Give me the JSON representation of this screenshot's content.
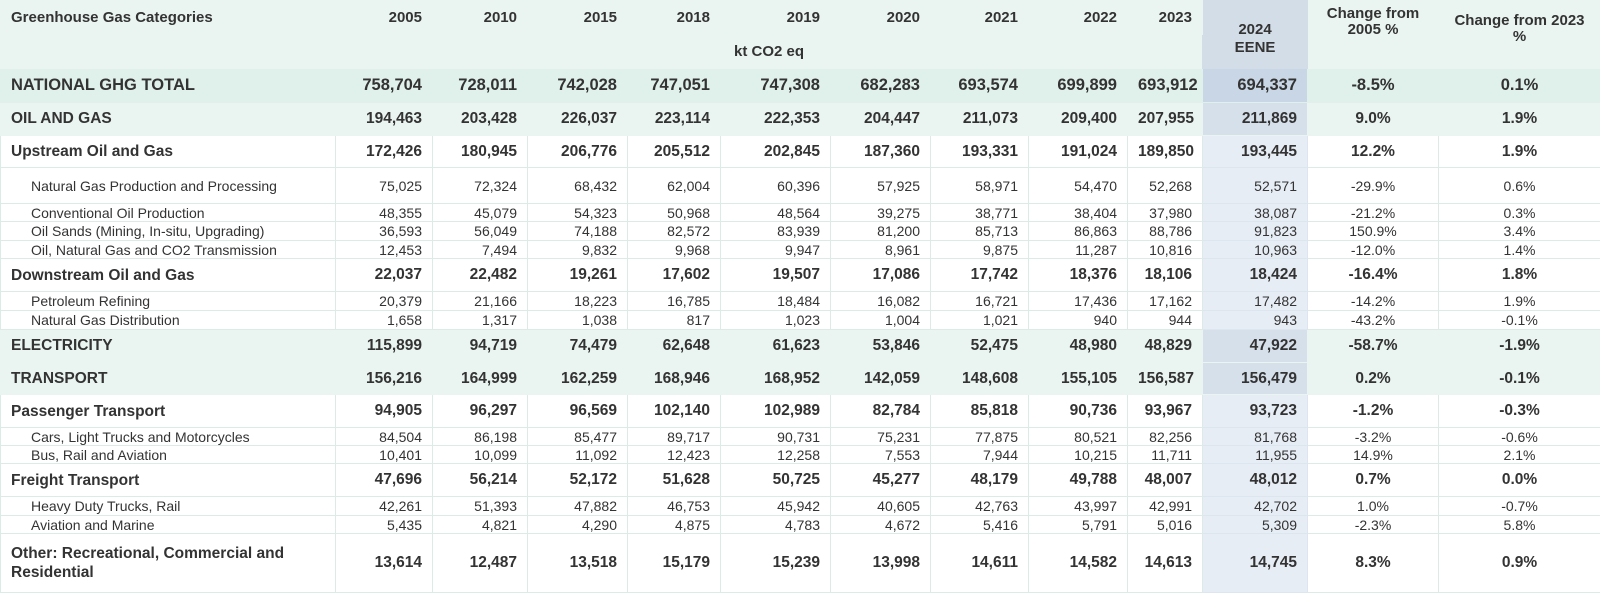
{
  "header": {
    "category_label": "Greenhouse Gas Categories",
    "years": [
      "2005",
      "2010",
      "2015",
      "2018",
      "2019",
      "2020",
      "2021",
      "2022",
      "2023"
    ],
    "unit": "kt CO2 eq",
    "eene_year": "2024",
    "eene_label": "EENE",
    "change_2005": "Change from 2005 %",
    "change_2023": "Change from 2023 %"
  },
  "colors": {
    "header_bg": "#eaf5f1",
    "total_bg": "#e0f0ea",
    "eene_col": "#e7edf5"
  },
  "rows": [
    {
      "type": "total",
      "label": "NATIONAL GHG TOTAL",
      "values": [
        "758,704",
        "728,011",
        "742,028",
        "747,051",
        "747,308",
        "682,283",
        "693,574",
        "699,899",
        "693,912"
      ],
      "eene": "694,337",
      "chg2005": "-8.5%",
      "chg2023": "0.1%"
    },
    {
      "type": "section",
      "label": "OIL AND GAS",
      "values": [
        "194,463",
        "203,428",
        "226,037",
        "223,114",
        "222,353",
        "204,447",
        "211,073",
        "209,400",
        "207,955"
      ],
      "eene": "211,869",
      "chg2005": "9.0%",
      "chg2023": "1.9%"
    },
    {
      "type": "sub",
      "label": "Upstream Oil and Gas",
      "values": [
        "172,426",
        "180,945",
        "206,776",
        "205,512",
        "202,845",
        "187,360",
        "193,331",
        "191,024",
        "189,850"
      ],
      "eene": "193,445",
      "chg2005": "12.2%",
      "chg2023": "1.9%"
    },
    {
      "type": "item",
      "label": "Natural Gas Production and Processing",
      "values": [
        "75,025",
        "72,324",
        "68,432",
        "62,004",
        "60,396",
        "57,925",
        "58,971",
        "54,470",
        "52,268"
      ],
      "eene": "52,571",
      "chg2005": "-29.9%",
      "chg2023": "0.6%"
    },
    {
      "type": "item",
      "label": "Conventional Oil Production",
      "values": [
        "48,355",
        "45,079",
        "54,323",
        "50,968",
        "48,564",
        "39,275",
        "38,771",
        "38,404",
        "37,980"
      ],
      "eene": "38,087",
      "chg2005": "-21.2%",
      "chg2023": "0.3%"
    },
    {
      "type": "item",
      "label": "Oil Sands (Mining, In-situ, Upgrading)",
      "values": [
        "36,593",
        "56,049",
        "74,188",
        "82,572",
        "83,939",
        "81,200",
        "85,713",
        "86,863",
        "88,786"
      ],
      "eene": "91,823",
      "chg2005": "150.9%",
      "chg2023": "3.4%"
    },
    {
      "type": "item",
      "label": "Oil, Natural Gas and CO2 Transmission",
      "values": [
        "12,453",
        "7,494",
        "9,832",
        "9,968",
        "9,947",
        "8,961",
        "9,875",
        "11,287",
        "10,816"
      ],
      "eene": "10,963",
      "chg2005": "-12.0%",
      "chg2023": "1.4%"
    },
    {
      "type": "sub",
      "label": "Downstream Oil and Gas",
      "values": [
        "22,037",
        "22,482",
        "19,261",
        "17,602",
        "19,507",
        "17,086",
        "17,742",
        "18,376",
        "18,106"
      ],
      "eene": "18,424",
      "chg2005": "-16.4%",
      "chg2023": "1.8%"
    },
    {
      "type": "item",
      "label": "Petroleum Refining",
      "values": [
        "20,379",
        "21,166",
        "18,223",
        "16,785",
        "18,484",
        "16,082",
        "16,721",
        "17,436",
        "17,162"
      ],
      "eene": "17,482",
      "chg2005": "-14.2%",
      "chg2023": "1.9%"
    },
    {
      "type": "item",
      "label": "Natural Gas Distribution",
      "values": [
        "1,658",
        "1,317",
        "1,038",
        "817",
        "1,023",
        "1,004",
        "1,021",
        "940",
        "944"
      ],
      "eene": "943",
      "chg2005": "-43.2%",
      "chg2023": "-0.1%"
    },
    {
      "type": "section",
      "label": "ELECTRICITY",
      "values": [
        "115,899",
        "94,719",
        "74,479",
        "62,648",
        "61,623",
        "53,846",
        "52,475",
        "48,980",
        "48,829"
      ],
      "eene": "47,922",
      "chg2005": "-58.7%",
      "chg2023": "-1.9%"
    },
    {
      "type": "section",
      "label": "TRANSPORT",
      "values": [
        "156,216",
        "164,999",
        "162,259",
        "168,946",
        "168,952",
        "142,059",
        "148,608",
        "155,105",
        "156,587"
      ],
      "eene": "156,479",
      "chg2005": "0.2%",
      "chg2023": "-0.1%"
    },
    {
      "type": "sub",
      "label": "Passenger Transport",
      "values": [
        "94,905",
        "96,297",
        "96,569",
        "102,140",
        "102,989",
        "82,784",
        "85,818",
        "90,736",
        "93,967"
      ],
      "eene": "93,723",
      "chg2005": "-1.2%",
      "chg2023": "-0.3%"
    },
    {
      "type": "item",
      "label": "Cars, Light Trucks and Motorcycles",
      "values": [
        "84,504",
        "86,198",
        "85,477",
        "89,717",
        "90,731",
        "75,231",
        "77,875",
        "80,521",
        "82,256"
      ],
      "eene": "81,768",
      "chg2005": "-3.2%",
      "chg2023": "-0.6%"
    },
    {
      "type": "item",
      "label": "Bus, Rail and Aviation",
      "values": [
        "10,401",
        "10,099",
        "11,092",
        "12,423",
        "12,258",
        "7,553",
        "7,944",
        "10,215",
        "11,711"
      ],
      "eene": "11,955",
      "chg2005": "14.9%",
      "chg2023": "2.1%"
    },
    {
      "type": "sub",
      "label": "Freight Transport",
      "values": [
        "47,696",
        "56,214",
        "52,172",
        "51,628",
        "50,725",
        "45,277",
        "48,179",
        "49,788",
        "48,007"
      ],
      "eene": "48,012",
      "chg2005": "0.7%",
      "chg2023": "0.0%"
    },
    {
      "type": "item",
      "label": "Heavy Duty Trucks, Rail",
      "values": [
        "42,261",
        "51,393",
        "47,882",
        "46,753",
        "45,942",
        "40,605",
        "42,763",
        "43,997",
        "42,991"
      ],
      "eene": "42,702",
      "chg2005": "1.0%",
      "chg2023": "-0.7%"
    },
    {
      "type": "item",
      "label": "Aviation and Marine",
      "values": [
        "5,435",
        "4,821",
        "4,290",
        "4,875",
        "4,783",
        "4,672",
        "5,416",
        "5,791",
        "5,016"
      ],
      "eene": "5,309",
      "chg2005": "-2.3%",
      "chg2023": "5.8%"
    },
    {
      "type": "sub",
      "label": "Other: Recreational, Commercial and Residential",
      "values": [
        "13,614",
        "12,487",
        "13,518",
        "15,179",
        "15,239",
        "13,998",
        "14,611",
        "14,582",
        "14,613"
      ],
      "eene": "14,745",
      "chg2005": "8.3%",
      "chg2023": "0.9%"
    }
  ]
}
